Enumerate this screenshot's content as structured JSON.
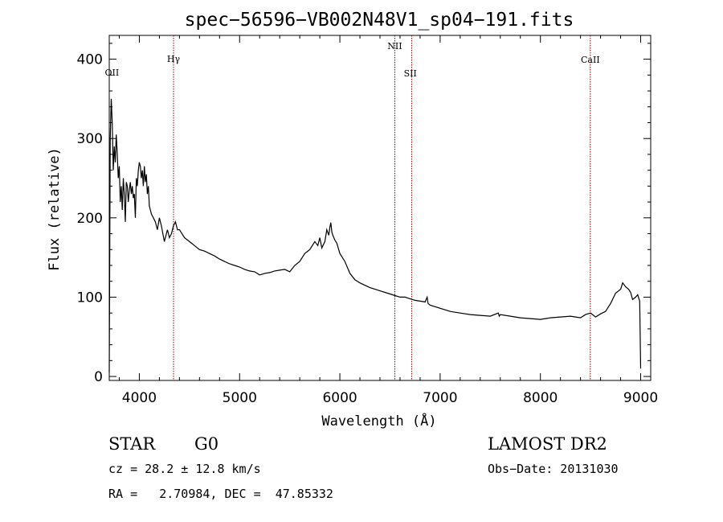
{
  "chart_data": {
    "type": "line",
    "title": "spec−56596−VB002N48V1_sp04−191.fits",
    "xlabel": "Wavelength (Å)",
    "ylabel": "Flux (relative)",
    "xlim": [
      3700,
      9100
    ],
    "ylim": [
      -5,
      430
    ],
    "xticks": [
      4000,
      5000,
      6000,
      7000,
      8000,
      9000
    ],
    "yticks": [
      0,
      100,
      200,
      300,
      400
    ],
    "grid": false,
    "series": [
      {
        "x": [
          3700,
          3710,
          3720,
          3730,
          3740,
          3750,
          3760,
          3770,
          3780,
          3790,
          3800,
          3810,
          3820,
          3830,
          3840,
          3850,
          3860,
          3870,
          3880,
          3890,
          3900,
          3910,
          3920,
          3930,
          3940,
          3950,
          3960,
          3970,
          3980,
          3990,
          4000,
          4010,
          4020,
          4030,
          4040,
          4050,
          4060,
          4070,
          4080,
          4090,
          4100,
          4120,
          4140,
          4160,
          4180,
          4200,
          4220,
          4250,
          4280,
          4300,
          4320,
          4340,
          4360,
          4380,
          4400,
          4450,
          4500,
          4550,
          4600,
          4650,
          4700,
          4750,
          4800,
          4850,
          4900,
          4950,
          5000,
          5050,
          5100,
          5150,
          5200,
          5250,
          5300,
          5350,
          5400,
          5450,
          5500,
          5550,
          5600,
          5650,
          5700,
          5750,
          5780,
          5800,
          5820,
          5850,
          5870,
          5890,
          5900,
          5910,
          5920,
          5930,
          5950,
          5970,
          6000,
          6050,
          6100,
          6150,
          6200,
          6250,
          6300,
          6350,
          6400,
          6450,
          6500,
          6550,
          6600,
          6650,
          6700,
          6750,
          6800,
          6850,
          6870,
          6880,
          6900,
          6950,
          7000,
          7050,
          7100,
          7200,
          7300,
          7400,
          7500,
          7580,
          7590,
          7600,
          7700,
          7800,
          7900,
          8000,
          8100,
          8200,
          8300,
          8400,
          8450,
          8500,
          8550,
          8600,
          8650,
          8700,
          8750,
          8800,
          8820,
          8850,
          8880,
          8900,
          8920,
          8950,
          8970,
          8990,
          9000
        ],
        "y": [
          5,
          300,
          350,
          320,
          260,
          290,
          270,
          305,
          280,
          250,
          265,
          220,
          240,
          210,
          250,
          230,
          195,
          245,
          240,
          220,
          235,
          245,
          230,
          240,
          225,
          230,
          200,
          250,
          240,
          260,
          270,
          265,
          250,
          260,
          240,
          265,
          245,
          255,
          230,
          240,
          215,
          205,
          200,
          195,
          185,
          200,
          190,
          170,
          185,
          175,
          180,
          190,
          195,
          185,
          185,
          175,
          170,
          165,
          160,
          158,
          155,
          152,
          148,
          145,
          142,
          140,
          138,
          135,
          133,
          132,
          128,
          130,
          131,
          133,
          134,
          135,
          132,
          140,
          145,
          155,
          160,
          170,
          165,
          175,
          162,
          170,
          185,
          178,
          188,
          194,
          182,
          178,
          172,
          168,
          155,
          145,
          130,
          122,
          118,
          115,
          112,
          110,
          108,
          106,
          104,
          102,
          100,
          100,
          98,
          96,
          95,
          94,
          100,
          92,
          90,
          88,
          86,
          84,
          82,
          80,
          78,
          77,
          76,
          80,
          76,
          78,
          76,
          74,
          73,
          72,
          74,
          75,
          76,
          74,
          78,
          80,
          75,
          79,
          82,
          92,
          105,
          110,
          118,
          113,
          110,
          106,
          97,
          100,
          103,
          95,
          10
        ]
      }
    ],
    "line_markers": [
      {
        "label": "OII",
        "x": 3727,
        "vline": false
      },
      {
        "label": "Hγ",
        "x": 4341,
        "vline": true
      },
      {
        "label": "NII",
        "x": 6548,
        "vline": true
      },
      {
        "label": "SII",
        "x": 6717,
        "vline": true
      },
      {
        "label": "CaII",
        "x": 8498,
        "vline": true
      }
    ]
  },
  "info": {
    "class": "STAR",
    "subclass": "G0",
    "survey": "LAMOST DR2",
    "cz": "cz = 28.2 ± 12.8 km/s",
    "obs_date": "Obs−Date: 20131030",
    "radec": "RA =   2.70984, DEC =  47.85332"
  }
}
